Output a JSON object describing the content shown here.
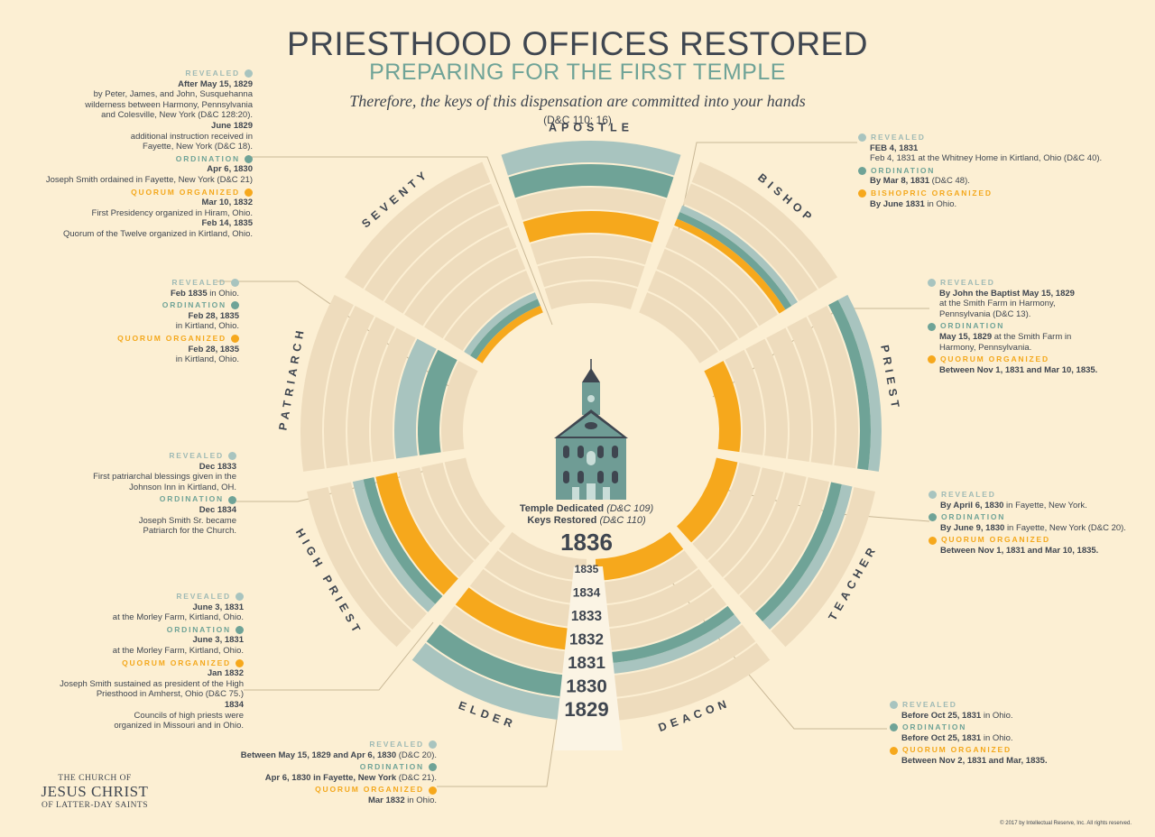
{
  "header": {
    "title": "PRIESTHOOD OFFICES RESTORED",
    "subtitle": "PREPARING FOR THE FIRST TEMPLE",
    "quote": "Therefore, the keys of this dispensation are committed into your hands",
    "reference": "(D&C 110: 16)"
  },
  "colors": {
    "background": "#fcefd3",
    "ring": "#eedcbd",
    "revealed": "#a8c4bf",
    "ordination": "#6fa397",
    "quorum": "#f6a81c",
    "text": "#3f4650"
  },
  "legend": {
    "revealed": "REVEALED",
    "ordination": "ORDINATION",
    "quorum": "QUORUM ORGANIZED",
    "bishopric": "BISHOPRIC ORGANIZED"
  },
  "center": {
    "icon": "temple-icon",
    "line1": "Temple Dedicated",
    "line1_ref": "(D&C 109)",
    "line2": "Keys Restored",
    "line2_ref": "(D&C 110)",
    "year": "1836"
  },
  "years": [
    "1829",
    "1830",
    "1831",
    "1832",
    "1833",
    "1834",
    "1835"
  ],
  "offices": [
    {
      "name": "APOSTLE",
      "revealed": 1829,
      "ordination": 1830,
      "quorum": 1832
    },
    {
      "name": "BISHOP",
      "revealed": 1831,
      "ordination": 1831,
      "quorum": 1831
    },
    {
      "name": "PRIEST",
      "revealed": 1829,
      "ordination": 1829,
      "quorum": 1835
    },
    {
      "name": "TEACHER",
      "revealed": 1830,
      "ordination": 1830,
      "quorum": 1835
    },
    {
      "name": "DEACON",
      "revealed": 1831,
      "ordination": 1831,
      "quorum": 1835
    },
    {
      "name": "ELDER",
      "revealed": 1829,
      "ordination": 1830,
      "quorum": 1832
    },
    {
      "name": "HIGH PRIEST",
      "revealed": 1831,
      "ordination": 1831,
      "quorum": 1832
    },
    {
      "name": "PATRIARCH",
      "revealed": 1833,
      "ordination": 1834,
      "quorum": null
    },
    {
      "name": "SEVENTY",
      "revealed": 1835,
      "ordination": 1835,
      "quorum": 1835
    }
  ],
  "panels": {
    "apostle": {
      "rev_d1": "After May 15, 1829",
      "rev_t1": "by Peter, James, and John, Susquehanna wilderness between Harmony, Pennsylvania and Colesville, New York (D&C 128:20).",
      "rev_d2": "June 1829",
      "rev_t2": "additional instruction received in Fayette, New York (D&C 18).",
      "ord_d": "Apr 6, 1830",
      "ord_t": "Joseph Smith ordained  in Fayette, New York (D&C 21)",
      "q_d1": "Mar 10, 1832",
      "q_t1": "First Presidency organized  in Hiram, Ohio.",
      "q_d2": "Feb 14, 1835",
      "q_t2": "Quorum of the Twelve organized  in Kirtland, Ohio."
    },
    "bishop": {
      "rev_d": "FEB 4, 1831",
      "rev_t": "Feb 4, 1831 at the Whitney Home in Kirtland, Ohio (D&C 40).",
      "ord_d": "By Mar 8, 1831",
      "ord_t": "(D&C 48).",
      "q_d": "By June 1831",
      "q_t": "in Ohio."
    },
    "priest": {
      "rev_d": "By John the Baptist May 15, 1829",
      "rev_t": "at the Smith Farm in Harmony, Pennsylvania (D&C 13).",
      "ord_d": "May 15, 1829",
      "ord_t": "at the Smith Farm in Harmony, Pennsylvania.",
      "q_d": "Between Nov 1, 1831 and Mar 10, 1835."
    },
    "teacher": {
      "rev_d": "By April 6, 1830",
      "rev_t": "in Fayette, New York.",
      "ord_d": "By June 9, 1830",
      "ord_t": "in Fayette, New York (D&C 20).",
      "q_d": "Between Nov 1, 1831 and Mar 10, 1835."
    },
    "deacon": {
      "rev_d": "Before Oct 25, 1831",
      "rev_t": "in Ohio.",
      "ord_d": "Before Oct 25, 1831",
      "ord_t": "in Ohio.",
      "q_d": "Between Nov 2, 1831 and Mar, 1835."
    },
    "elder": {
      "rev_d": "Between May 15, 1829 and Apr 6, 1830",
      "rev_t": "(D&C 20).",
      "ord_d": "Apr 6, 1830 in Fayette, New York",
      "ord_t": "(D&C 21).",
      "q_d": "Mar 1832",
      "q_t": "in Ohio."
    },
    "high_priest": {
      "rev_d": "June 3, 1831",
      "rev_t": "at the Morley Farm, Kirtland, Ohio.",
      "ord_d": "June 3, 1831",
      "ord_t": "at the Morley Farm, Kirtland, Ohio.",
      "q_d1": "Jan 1832",
      "q_t1": "Joseph Smith sustained as president of the High Priesthood in Amherst, Ohio (D&C 75.)",
      "q_d2": "1834",
      "q_t2": "Councils of high priests were organized in Missouri and in Ohio."
    },
    "patriarch": {
      "rev_d": "Dec 1833",
      "rev_t": "First patriarchal blessings given in the Johnson Inn in Kirtland, OH.",
      "ord_d": "Dec 1834",
      "ord_t": "Joseph Smith Sr. became Patriarch for the Church."
    },
    "seventy": {
      "rev_d": "Feb 1835",
      "rev_t": "in Ohio.",
      "ord_d": "Feb 28, 1835",
      "ord_t": "in Kirtland, Ohio.",
      "q_d": "Feb 28, 1835",
      "q_t": "in Kirtland, Ohio."
    }
  },
  "logo": {
    "line1": "THE CHURCH OF",
    "line2": "JESUS CHRIST",
    "line3": "OF LATTER-DAY SAINTS"
  },
  "copyright": "© 2017 by Intellectual Reserve, Inc. All rights reserved."
}
